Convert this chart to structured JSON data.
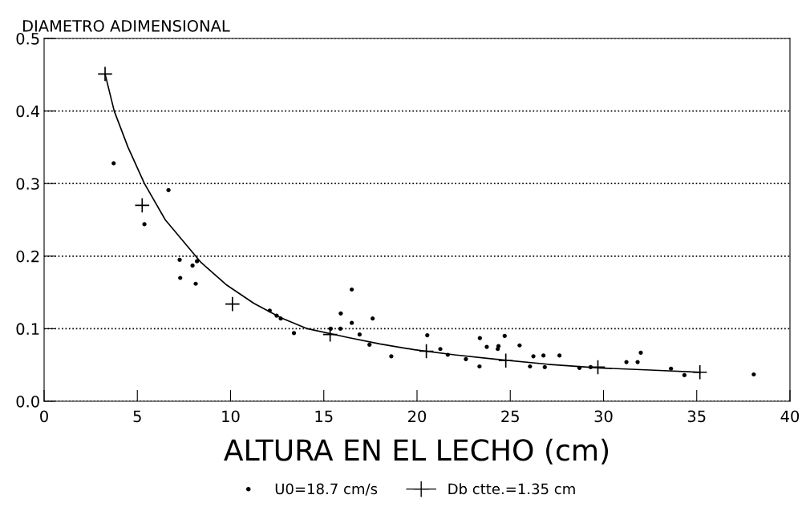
{
  "chart_data": {
    "type": "scatter",
    "ylabel": "DIAMETRO ADIMENSIONAL",
    "xlabel": "ALTURA EN EL LECHO (cm)",
    "xlim": [
      0,
      40
    ],
    "xticks": [
      0,
      5,
      10,
      15,
      20,
      25,
      30,
      35,
      40
    ],
    "ylim": [
      0,
      0.5
    ],
    "yticks": [
      {
        "value": 0,
        "label": "0.0"
      },
      {
        "value": 0.1,
        "label": "0.1"
      },
      {
        "value": 0.2,
        "label": "0.2"
      },
      {
        "value": 0.3,
        "label": "0.3"
      },
      {
        "value": 0.4,
        "label": "0.4"
      },
      {
        "value": 0.5,
        "label": "0.5"
      }
    ],
    "grid": "y",
    "legend": "bottom",
    "series": [
      {
        "name": "U0=18.7 cm/s",
        "marker": "circle",
        "color": "#000000",
        "x": [
          3.73,
          6.67,
          5.38,
          7.27,
          7.3,
          7.96,
          8.13,
          8.2,
          12.1,
          12.47,
          12.69,
          13.4,
          15.37,
          15.91,
          15.89,
          16.5,
          16.5,
          16.92,
          17.62,
          17.45,
          18.62,
          20.55,
          21.25,
          21.65,
          22.62,
          23.37,
          23.74,
          23.35,
          24.37,
          24.33,
          24.7,
          25.5,
          26.06,
          26.24,
          26.78,
          26.85,
          27.64,
          28.71,
          29.31,
          31.23,
          31.83,
          32.0,
          33.62,
          34.34,
          38.06
        ],
        "values": [
          0.328,
          0.291,
          0.244,
          0.195,
          0.17,
          0.187,
          0.162,
          0.193,
          0.125,
          0.118,
          0.114,
          0.094,
          0.1,
          0.121,
          0.1,
          0.154,
          0.108,
          0.092,
          0.114,
          0.078,
          0.062,
          0.091,
          0.072,
          0.064,
          0.058,
          0.087,
          0.075,
          0.048,
          0.076,
          0.072,
          0.09,
          0.077,
          0.048,
          0.062,
          0.063,
          0.047,
          0.063,
          0.046,
          0.047,
          0.054,
          0.054,
          0.067,
          0.045,
          0.036,
          0.037
        ]
      },
      {
        "name": "Db ctte.=1.35 cm",
        "type": "scatter",
        "marker": "cross",
        "color": "#000000",
        "x": [
          3.27,
          5.26,
          10.1,
          15.34,
          20.5,
          24.76,
          29.7,
          35.17
        ],
        "values": [
          0.451,
          0.27,
          0.134,
          0.092,
          0.069,
          0.056,
          0.047,
          0.04
        ]
      },
      {
        "type": "line",
        "marker": "none",
        "line_style": "solid",
        "color": "#000000",
        "x": [
          3.27,
          3.76,
          4.5,
          5.38,
          6.5,
          8.39,
          9.8,
          11.25,
          12.7,
          14.12,
          16.27,
          18,
          19.86,
          22,
          24.16,
          27,
          29.74,
          32.5,
          35.2
        ],
        "values": [
          0.451,
          0.4,
          0.35,
          0.3,
          0.25,
          0.192,
          0.16,
          0.135,
          0.115,
          0.1,
          0.088,
          0.079,
          0.071,
          0.064,
          0.058,
          0.051,
          0.046,
          0.043,
          0.04
        ]
      }
    ]
  }
}
